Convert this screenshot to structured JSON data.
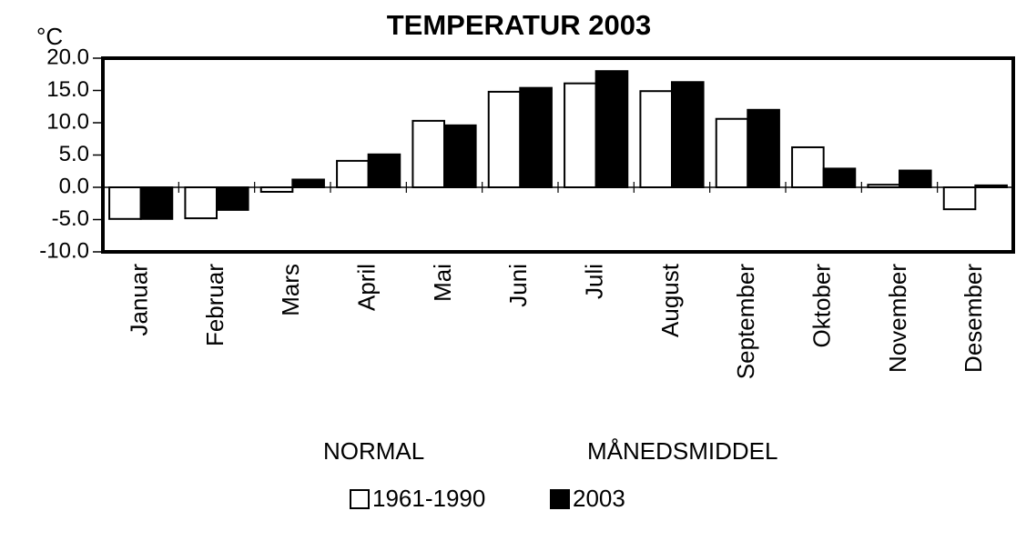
{
  "chart_data": {
    "type": "bar",
    "title": "TEMPERATUR 2003",
    "y_label": "°C",
    "categories": [
      "Januar",
      "Februar",
      "Mars",
      "April",
      "Mai",
      "Juni",
      "Juli",
      "August",
      "September",
      "Oktober",
      "November",
      "Desember"
    ],
    "series": [
      {
        "name": "1961-1990",
        "color": "#ffffff",
        "values": [
          -4.9,
          -4.8,
          -0.7,
          4.1,
          10.3,
          14.8,
          16.1,
          14.9,
          10.6,
          6.2,
          0.4,
          -3.4
        ]
      },
      {
        "name": "2003",
        "color": "#000000",
        "values": [
          -4.9,
          -3.5,
          1.2,
          5.1,
          9.6,
          15.4,
          18.0,
          16.3,
          12.0,
          2.9,
          2.6,
          0.3
        ]
      }
    ],
    "annotations": [
      "NORMAL",
      "MÅNEDSMIDDEL"
    ],
    "ylim": [
      -10,
      20
    ],
    "yticks": [
      {
        "value": -10,
        "label": "-10.0"
      },
      {
        "value": -5,
        "label": "-5.0"
      },
      {
        "value": 0,
        "label": "0.0"
      },
      {
        "value": 5,
        "label": "5.0"
      },
      {
        "value": 10,
        "label": "10.0"
      },
      {
        "value": 15,
        "label": "15.0"
      },
      {
        "value": 20,
        "label": "20.0"
      }
    ]
  }
}
